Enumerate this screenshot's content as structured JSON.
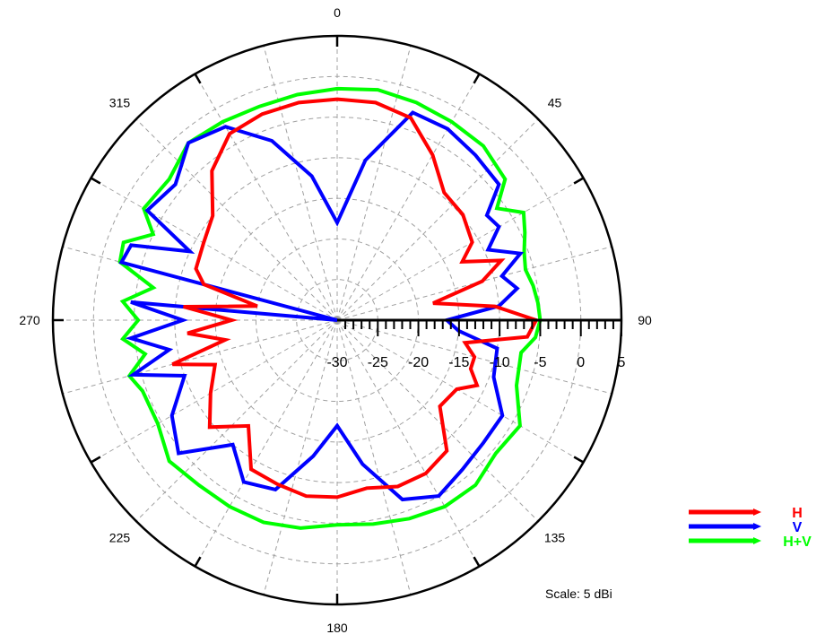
{
  "chart_data": {
    "type": "polar-line",
    "angle_labels": [
      {
        "angle": 0,
        "text": "0"
      },
      {
        "angle": 45,
        "text": "45"
      },
      {
        "angle": 90,
        "text": "90"
      },
      {
        "angle": 135,
        "text": "135"
      },
      {
        "angle": 180,
        "text": "180"
      },
      {
        "angle": 225,
        "text": "225"
      },
      {
        "angle": 270,
        "text": "270"
      },
      {
        "angle": 315,
        "text": "315"
      }
    ],
    "radial_axis": {
      "range": [
        -30,
        5
      ],
      "tick_labels": [
        "-30",
        "-25",
        "-20",
        "-15",
        "-10",
        "-5",
        "0",
        "5"
      ],
      "tick_values": [
        -30,
        -25,
        -20,
        -15,
        -10,
        -5,
        0,
        5
      ]
    },
    "grid": true,
    "legend_position": "bottom-right",
    "scale_note": "Scale: 5 dBi",
    "series": [
      {
        "name": "H",
        "color": "#ff0000",
        "points": [
          [
            0,
            -2.8
          ],
          [
            10,
            -2.8
          ],
          [
            20,
            -3.5
          ],
          [
            30,
            -6.5
          ],
          [
            40,
            -9.5
          ],
          [
            50,
            -9.8
          ],
          [
            60,
            -10.8
          ],
          [
            65,
            -13
          ],
          [
            70,
            -8.5
          ],
          [
            75,
            -11.5
          ],
          [
            80,
            -18
          ],
          [
            85,
            -10.5
          ],
          [
            90,
            -5.5
          ],
          [
            95,
            -6.5
          ],
          [
            100,
            -14
          ],
          [
            105,
            -12.5
          ],
          [
            110,
            -12.5
          ],
          [
            115,
            -11
          ],
          [
            120,
            -13
          ],
          [
            130,
            -13.5
          ],
          [
            140,
            -9
          ],
          [
            150,
            -8.2
          ],
          [
            160,
            -8.2
          ],
          [
            170,
            -9
          ],
          [
            180,
            -8.2
          ],
          [
            190,
            -8
          ],
          [
            200,
            -8.5
          ],
          [
            210,
            -8.8
          ],
          [
            220,
            -13
          ],
          [
            230,
            -9.5
          ],
          [
            240,
            -12
          ],
          [
            250,
            -14
          ],
          [
            255,
            -9
          ],
          [
            260,
            -16
          ],
          [
            265,
            -11.5
          ],
          [
            270,
            -17
          ],
          [
            275,
            -11
          ],
          [
            280,
            -20
          ],
          [
            285,
            -13
          ],
          [
            290,
            -11.5
          ],
          [
            300,
            -11
          ],
          [
            310,
            -10
          ],
          [
            320,
            -6
          ],
          [
            330,
            -3.5
          ],
          [
            340,
            -3
          ],
          [
            350,
            -2.8
          ]
        ]
      },
      {
        "name": "V",
        "color": "#0000ff",
        "points": [
          [
            0,
            -18
          ],
          [
            10,
            -10
          ],
          [
            20,
            -2.8
          ],
          [
            30,
            -2.8
          ],
          [
            40,
            -3.5
          ],
          [
            50,
            -4
          ],
          [
            55,
            -7.5
          ],
          [
            60,
            -7
          ],
          [
            65,
            -9.5
          ],
          [
            70,
            -6
          ],
          [
            75,
            -9
          ],
          [
            80,
            -7.5
          ],
          [
            85,
            -10
          ],
          [
            90,
            -16.5
          ],
          [
            95,
            -15
          ],
          [
            100,
            -10
          ],
          [
            110,
            -9.5
          ],
          [
            120,
            -6.5
          ],
          [
            130,
            -6.5
          ],
          [
            140,
            -6
          ],
          [
            150,
            -5
          ],
          [
            160,
            -6.5
          ],
          [
            170,
            -12
          ],
          [
            180,
            -17
          ],
          [
            190,
            -13
          ],
          [
            200,
            -7.8
          ],
          [
            210,
            -7
          ],
          [
            220,
            -10
          ],
          [
            230,
            -4.5
          ],
          [
            240,
            -6.5
          ],
          [
            250,
            -10
          ],
          [
            255,
            -4
          ],
          [
            260,
            -9
          ],
          [
            265,
            -4.5
          ],
          [
            270,
            -11
          ],
          [
            275,
            -4.5
          ],
          [
            280,
            -30
          ],
          [
            285,
            -2.5
          ],
          [
            290,
            -3
          ],
          [
            295,
            -10
          ],
          [
            300,
            -3
          ],
          [
            310,
            -4
          ],
          [
            320,
            -1.5
          ],
          [
            330,
            -2.5
          ],
          [
            340,
            -6.5
          ],
          [
            350,
            -12
          ]
        ]
      },
      {
        "name": "H+V",
        "color": "#00ff00",
        "points": [
          [
            0,
            -1.5
          ],
          [
            10,
            -1.2
          ],
          [
            20,
            -1.5
          ],
          [
            30,
            -1.8
          ],
          [
            40,
            -2
          ],
          [
            50,
            -3
          ],
          [
            55,
            -6
          ],
          [
            60,
            -3.5
          ],
          [
            65,
            -4.5
          ],
          [
            70,
            -5.5
          ],
          [
            75,
            -6
          ],
          [
            80,
            -5.5
          ],
          [
            85,
            -5.2
          ],
          [
            90,
            -5
          ],
          [
            95,
            -5.5
          ],
          [
            100,
            -7
          ],
          [
            110,
            -6.5
          ],
          [
            120,
            -4
          ],
          [
            130,
            -4.5
          ],
          [
            140,
            -3.5
          ],
          [
            150,
            -3.5
          ],
          [
            160,
            -4
          ],
          [
            170,
            -4.5
          ],
          [
            180,
            -4.8
          ],
          [
            190,
            -4
          ],
          [
            200,
            -3.5
          ],
          [
            210,
            -3.5
          ],
          [
            220,
            -3.5
          ],
          [
            230,
            -3
          ],
          [
            240,
            -4.5
          ],
          [
            250,
            -4.5
          ],
          [
            255,
            -3.5
          ],
          [
            260,
            -6
          ],
          [
            265,
            -3.5
          ],
          [
            270,
            -5.5
          ],
          [
            275,
            -3.5
          ],
          [
            280,
            -7
          ],
          [
            285,
            -2.3
          ],
          [
            290,
            -2
          ],
          [
            295,
            -5
          ],
          [
            300,
            -2.5
          ],
          [
            310,
            -3
          ],
          [
            320,
            -1.5
          ],
          [
            330,
            -1.8
          ],
          [
            340,
            -2
          ],
          [
            350,
            -1.8
          ]
        ]
      }
    ]
  }
}
